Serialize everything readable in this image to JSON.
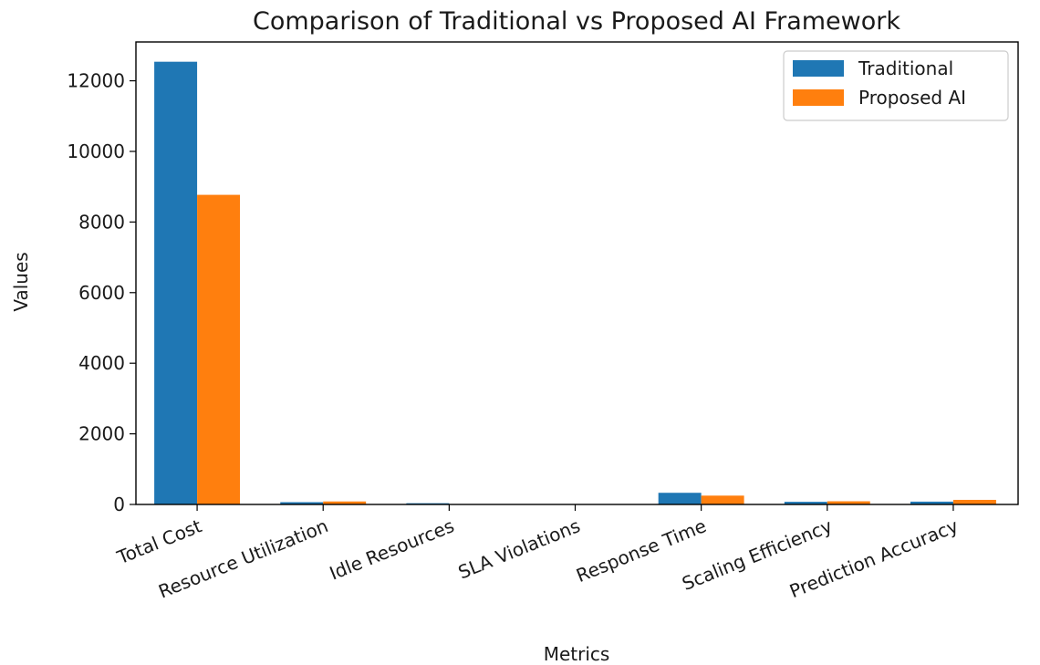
{
  "chart_data": {
    "type": "bar",
    "title": "Comparison of Traditional vs Proposed AI Framework",
    "xlabel": "Metrics",
    "ylabel": "Values",
    "ylim": [
      0,
      13100
    ],
    "yticks": [
      0,
      2000,
      4000,
      6000,
      8000,
      10000,
      12000
    ],
    "categories": [
      "Total Cost",
      "Resource Utilization",
      "Idle Resources",
      "SLA Violations",
      "Response Time",
      "Scaling Efficiency",
      "Prediction Accuracy"
    ],
    "series": [
      {
        "name": "Traditional",
        "color": "#1f77b4",
        "values": [
          12540,
          65,
          35,
          5,
          330,
          75,
          80
        ]
      },
      {
        "name": "Proposed AI",
        "color": "#ff7f0e",
        "values": [
          8770,
          85,
          8,
          2,
          250,
          90,
          130
        ]
      }
    ],
    "grid": false,
    "legend_position": "top-right"
  }
}
